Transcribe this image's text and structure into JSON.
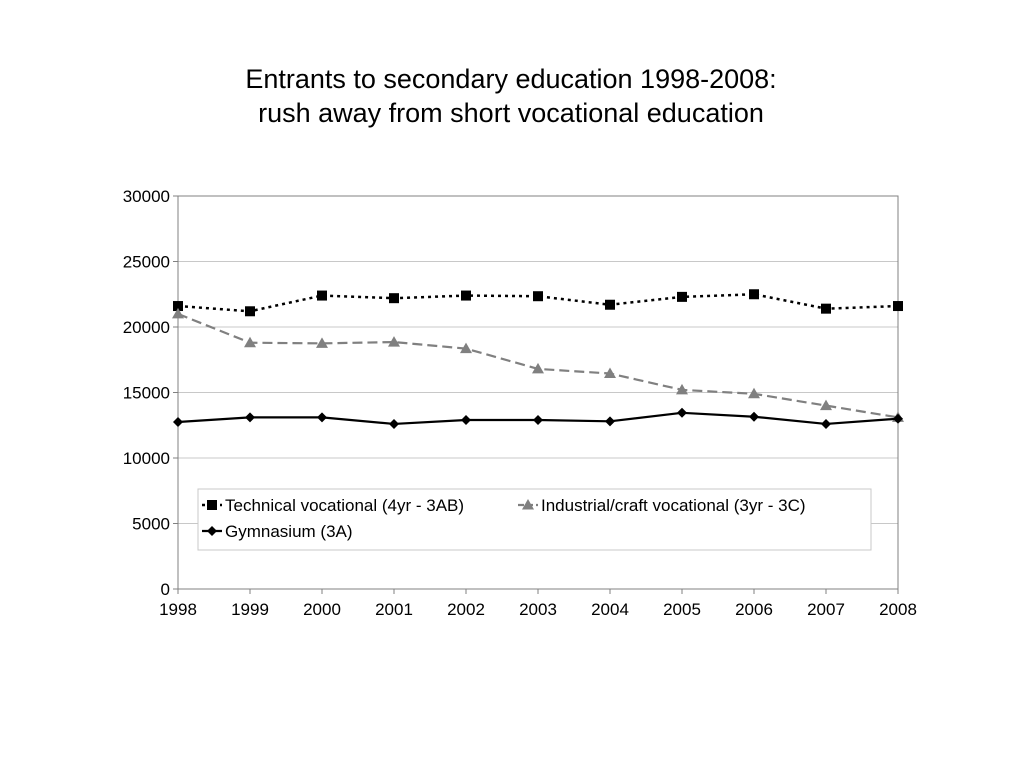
{
  "chart_data": {
    "type": "line",
    "title": [
      "Entrants to secondary education 1998-2008:",
      "rush away from short vocational education"
    ],
    "x": [
      "1998",
      "1999",
      "2000",
      "2001",
      "2002",
      "2003",
      "2004",
      "2005",
      "2006",
      "2007",
      "2008"
    ],
    "ylim": [
      0,
      30000
    ],
    "yticks": [
      "0",
      "5000",
      "10000",
      "15000",
      "20000",
      "25000",
      "30000"
    ],
    "grid": true,
    "legend_position": "bottom-inside",
    "series": [
      {
        "name": "Technical vocational (4yr - 3AB)",
        "marker": "square",
        "dash": "dotted",
        "color": "#000000",
        "values": [
          21600,
          21200,
          22400,
          22200,
          22400,
          22350,
          21700,
          22300,
          22500,
          21400,
          21600
        ]
      },
      {
        "name": "Industrial/craft vocational (3yr - 3C)",
        "marker": "triangle",
        "dash": "dashed",
        "color": "#808080",
        "values": [
          21000,
          18800,
          18750,
          18850,
          18350,
          16800,
          16450,
          15200,
          14900,
          14000,
          13100
        ]
      },
      {
        "name": "Gymnasium (3A)",
        "marker": "diamond",
        "dash": "solid",
        "color": "#000000",
        "values": [
          12750,
          13100,
          13100,
          12600,
          12900,
          12900,
          12800,
          13450,
          13150,
          12600,
          13000
        ]
      }
    ]
  }
}
